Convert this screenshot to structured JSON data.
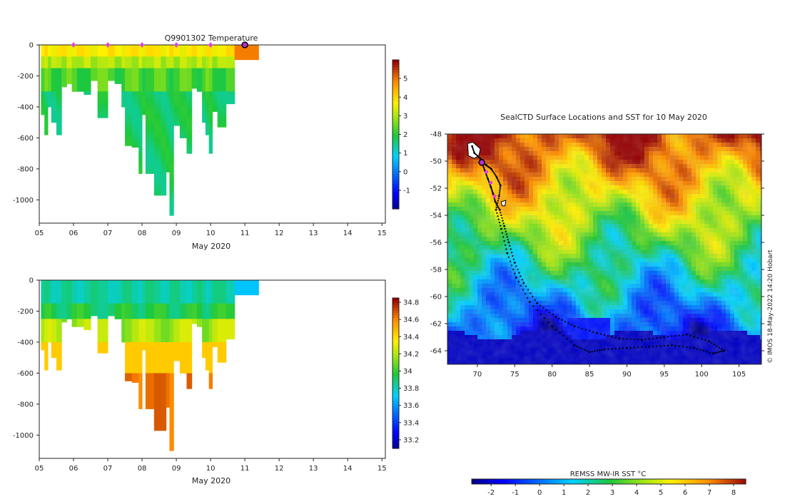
{
  "chart_data": [
    {
      "id": "temperature",
      "type": "heatmap",
      "title": "Q9901302  Temperature",
      "xlabel": "May 2020",
      "xticks": [
        "05",
        "06",
        "07",
        "08",
        "09",
        "10",
        "11",
        "12",
        "13",
        "14",
        "15"
      ],
      "xlim": [
        5,
        15.1
      ],
      "ylim": [
        -1150,
        0
      ],
      "yticks": [
        0,
        -200,
        -400,
        -600,
        -800,
        -1000
      ],
      "colorbar": {
        "min": -2,
        "max": 6,
        "ticks": [
          -1,
          0,
          1,
          2,
          3,
          4,
          5
        ]
      },
      "profile_markers": [
        6,
        7,
        8,
        9,
        10
      ],
      "current_marker": 11,
      "profiles": [
        {
          "x0": 5.05,
          "x1": 5.15,
          "depth": -450
        },
        {
          "x0": 5.15,
          "x1": 5.25,
          "depth": -580
        },
        {
          "x0": 5.25,
          "x1": 5.35,
          "depth": -400
        },
        {
          "x0": 5.35,
          "x1": 5.5,
          "depth": -500
        },
        {
          "x0": 5.5,
          "x1": 5.65,
          "depth": -580
        },
        {
          "x0": 5.65,
          "x1": 5.8,
          "depth": -270
        },
        {
          "x0": 5.8,
          "x1": 5.95,
          "depth": -250
        },
        {
          "x0": 5.95,
          "x1": 6.1,
          "depth": -300
        },
        {
          "x0": 6.1,
          "x1": 6.3,
          "depth": -300
        },
        {
          "x0": 6.3,
          "x1": 6.5,
          "depth": -320
        },
        {
          "x0": 6.5,
          "x1": 6.7,
          "depth": -230
        },
        {
          "x0": 6.7,
          "x1": 7.0,
          "depth": -470
        },
        {
          "x0": 7.0,
          "x1": 7.2,
          "depth": -230
        },
        {
          "x0": 7.2,
          "x1": 7.4,
          "depth": -250
        },
        {
          "x0": 7.4,
          "x1": 7.5,
          "depth": -400
        },
        {
          "x0": 7.5,
          "x1": 7.7,
          "depth": -650
        },
        {
          "x0": 7.7,
          "x1": 7.9,
          "depth": -660
        },
        {
          "x0": 7.9,
          "x1": 8.0,
          "depth": -830
        },
        {
          "x0": 8.0,
          "x1": 8.1,
          "depth": -450
        },
        {
          "x0": 8.1,
          "x1": 8.35,
          "depth": -830
        },
        {
          "x0": 8.35,
          "x1": 8.55,
          "depth": -970
        },
        {
          "x0": 8.55,
          "x1": 8.7,
          "depth": -970
        },
        {
          "x0": 8.7,
          "x1": 8.8,
          "depth": -820
        },
        {
          "x0": 8.8,
          "x1": 8.92,
          "depth": -1100
        },
        {
          "x0": 8.92,
          "x1": 9.1,
          "depth": -520
        },
        {
          "x0": 9.1,
          "x1": 9.3,
          "depth": -600
        },
        {
          "x0": 9.3,
          "x1": 9.45,
          "depth": -700
        },
        {
          "x0": 9.45,
          "x1": 9.6,
          "depth": -280
        },
        {
          "x0": 9.6,
          "x1": 9.75,
          "depth": -300
        },
        {
          "x0": 9.75,
          "x1": 9.85,
          "depth": -500
        },
        {
          "x0": 9.85,
          "x1": 9.95,
          "depth": -580
        },
        {
          "x0": 9.95,
          "x1": 10.05,
          "depth": -700
        },
        {
          "x0": 10.05,
          "x1": 10.2,
          "depth": -430
        },
        {
          "x0": 10.2,
          "x1": 10.45,
          "depth": -530
        },
        {
          "x0": 10.45,
          "x1": 10.7,
          "depth": -380
        },
        {
          "x0": 10.7,
          "x1": 11.4,
          "depth": -95
        }
      ]
    },
    {
      "id": "salinity",
      "type": "heatmap",
      "title": "",
      "xlabel": "May 2020",
      "xticks": [
        "05",
        "06",
        "07",
        "08",
        "09",
        "10",
        "11",
        "12",
        "13",
        "14",
        "15"
      ],
      "xlim": [
        5,
        15.1
      ],
      "ylim": [
        -1150,
        0
      ],
      "yticks": [
        0,
        -200,
        -400,
        -600,
        -800,
        -1000
      ],
      "colorbar": {
        "min": 33.1,
        "max": 34.85,
        "ticks": [
          33.2,
          33.4,
          33.6,
          33.8,
          34,
          34.2,
          34.4,
          34.6,
          34.8
        ]
      },
      "profiles": "same as temperature"
    },
    {
      "id": "sst_map",
      "type": "heatmap",
      "title": "SealCTD Surface Locations and SST for 10 May 2020",
      "xticks": [
        70,
        75,
        80,
        85,
        90,
        95,
        100,
        105
      ],
      "xlim": [
        66,
        108
      ],
      "yticks": [
        -48,
        -50,
        -52,
        -54,
        -56,
        -58,
        -60,
        -62,
        -64
      ],
      "ylim": [
        -65,
        -48
      ],
      "colorbar": {
        "label": "REMSS MW-IR SST °C",
        "min": -2.8,
        "max": 8.5,
        "ticks": [
          -2,
          -1,
          0,
          1,
          2,
          3,
          4,
          5,
          6,
          7,
          8
        ]
      },
      "track_out": [
        [
          69.3,
          -48.9
        ],
        [
          69.6,
          -49.4
        ],
        [
          70.4,
          -49.8
        ],
        [
          70.6,
          -50.1
        ],
        [
          71.0,
          -50.7
        ],
        [
          71.4,
          -51.3
        ],
        [
          71.8,
          -51.9
        ],
        [
          72.1,
          -52.4
        ],
        [
          72.4,
          -53.0
        ],
        [
          73.0,
          -53.6
        ],
        [
          73.6,
          -54.8
        ],
        [
          74.2,
          -56.0
        ],
        [
          75.0,
          -57.5
        ],
        [
          76.2,
          -59.0
        ],
        [
          78.0,
          -60.5
        ],
        [
          80.5,
          -61.5
        ],
        [
          83.0,
          -62.2
        ],
        [
          86.0,
          -62.7
        ],
        [
          89.0,
          -63.1
        ],
        [
          92.0,
          -63.2
        ],
        [
          95.0,
          -63.0
        ],
        [
          98.0,
          -62.8
        ],
        [
          101.0,
          -63.3
        ],
        [
          103.0,
          -64.0
        ]
      ],
      "track_back": [
        [
          103.0,
          -64.0
        ],
        [
          101.5,
          -64.2
        ],
        [
          99.0,
          -63.8
        ],
        [
          96.0,
          -63.6
        ],
        [
          93.0,
          -63.7
        ],
        [
          90.0,
          -63.8
        ],
        [
          87.0,
          -63.9
        ],
        [
          85.0,
          -64.1
        ],
        [
          83.0,
          -63.6
        ],
        [
          80.0,
          -62.2
        ],
        [
          77.0,
          -60.4
        ],
        [
          75.2,
          -58.6
        ],
        [
          74.0,
          -56.8
        ],
        [
          73.2,
          -55.0
        ],
        [
          72.5,
          -53.6
        ],
        [
          72.9,
          -52.6
        ],
        [
          73.1,
          -51.8
        ],
        [
          72.6,
          -51.2
        ],
        [
          71.9,
          -50.6
        ],
        [
          71.2,
          -50.3
        ],
        [
          70.6,
          -50.1
        ]
      ],
      "locations": [
        [
          70.6,
          -50.1
        ],
        [
          72.3,
          -52.6
        ],
        [
          71.2,
          -50.8
        ],
        [
          71.8,
          -51.6
        ]
      ],
      "current_location": [
        70.6,
        -50.1
      ]
    }
  ],
  "footer": {
    "credit": "© IMOS 18-May-2022 14:20 Hobart"
  },
  "colors": {
    "marker_magenta": "#e040e0",
    "current_marker": "#b030d0",
    "track": "#000000"
  }
}
